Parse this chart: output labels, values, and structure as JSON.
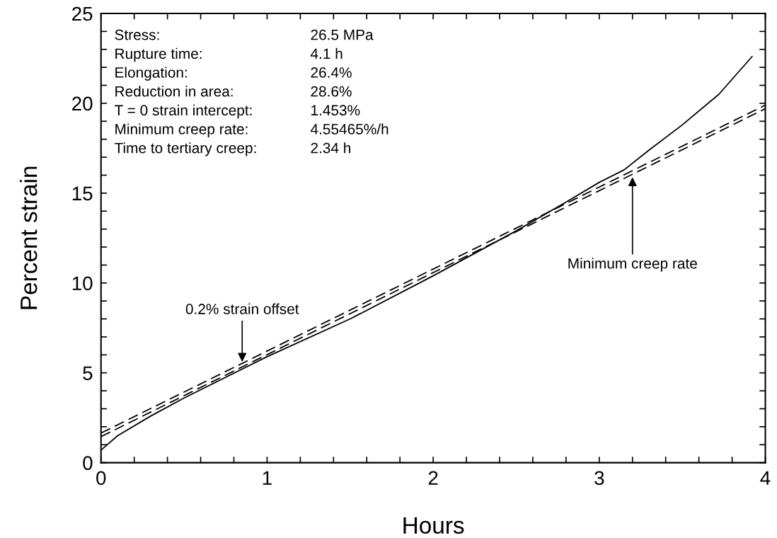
{
  "chart_data": {
    "type": "line",
    "xlabel": "Hours",
    "ylabel": "Percent strain",
    "xlim": [
      0,
      4
    ],
    "ylim": [
      0,
      25
    ],
    "xticks": [
      0,
      {
        "value": 0.2,
        "label": null
      },
      {
        "value": 0.4,
        "label": null
      },
      {
        "value": 0.6,
        "label": null
      },
      {
        "value": 0.8,
        "label": null
      },
      1,
      {
        "value": 1.2,
        "label": null
      },
      {
        "value": 1.4,
        "label": null
      },
      {
        "value": 1.6,
        "label": null
      },
      {
        "value": 1.8,
        "label": null
      },
      2,
      {
        "value": 2.2,
        "label": null
      },
      {
        "value": 2.4,
        "label": null
      },
      {
        "value": 2.6,
        "label": null
      },
      {
        "value": 2.8,
        "label": null
      },
      3,
      {
        "value": 3.2,
        "label": null
      },
      {
        "value": 3.4,
        "label": null
      },
      {
        "value": 3.6,
        "label": null
      },
      {
        "value": 3.8,
        "label": null
      },
      4
    ],
    "yticks": [
      0,
      {
        "value": 1,
        "label": null
      },
      {
        "value": 2,
        "label": null
      },
      {
        "value": 3,
        "label": null
      },
      {
        "value": 4,
        "label": null
      },
      5,
      {
        "value": 6,
        "label": null
      },
      {
        "value": 7,
        "label": null
      },
      {
        "value": 8,
        "label": null
      },
      {
        "value": 9,
        "label": null
      },
      10,
      {
        "value": 11,
        "label": null
      },
      {
        "value": 12,
        "label": null
      },
      {
        "value": 13,
        "label": null
      },
      {
        "value": 14,
        "label": null
      },
      15,
      {
        "value": 16,
        "label": null
      },
      {
        "value": 17,
        "label": null
      },
      {
        "value": 18,
        "label": null
      },
      {
        "value": 19,
        "label": null
      },
      20,
      {
        "value": 21,
        "label": null
      },
      {
        "value": 22,
        "label": null
      },
      {
        "value": 23,
        "label": null
      },
      {
        "value": 24,
        "label": null
      },
      25
    ],
    "grid": false,
    "legend": false,
    "marker": "none",
    "series": [
      {
        "color": "#000000",
        "line_style": "solid",
        "x": [
          0,
          0.1,
          0.3,
          0.5,
          1,
          1.5,
          2,
          2.5,
          2.8,
          3,
          3.15,
          3.3,
          3.5,
          3.72,
          3.92
        ],
        "values": [
          0.7,
          1.5,
          2.6,
          3.6,
          5.9,
          8.0,
          10.4,
          12.9,
          14.5,
          15.6,
          16.3,
          17.4,
          18.8,
          20.5,
          22.6
        ]
      },
      {
        "color": "#000000",
        "line_style": "dashed",
        "x": [
          0,
          4
        ],
        "values": [
          1.45,
          19.7
        ]
      },
      {
        "color": "#000000",
        "line_style": "dashed",
        "x": [
          0,
          4
        ],
        "values": [
          1.65,
          19.9
        ]
      }
    ],
    "annotations": [
      "Stress:",
      "26.5 MPa",
      "Rupture time:",
      "4.1 h",
      "Elongation:",
      "26.4%",
      "Reduction in area:",
      "28.6%",
      "T = 0 strain intercept:",
      "1.453%",
      "Minimum creep rate:",
      "4.55465%/h",
      "Time to tertiary creep:",
      "2.34 h",
      {
        "text": "0.2% strain offset",
        "x": 0.85,
        "y": 5.5
      },
      {
        "text": "Minimum creep rate",
        "x": 3.2,
        "y": 16.0
      }
    ]
  }
}
